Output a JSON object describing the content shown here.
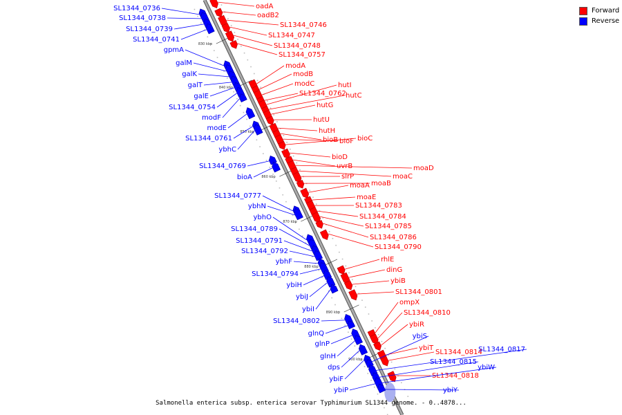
{
  "legend": {
    "items": [
      {
        "label": "Forward",
        "color": "#ff0000"
      },
      {
        "label": "Reverse",
        "color": "#0000ff"
      }
    ]
  },
  "caption": "Salmonella enterica subsp. enterica serovar Typhimurium SL1344 genome. - 0..4878...",
  "colors": {
    "forward": "#ff0000",
    "forward_dark": "#b00000",
    "reverse": "#0000ff",
    "reverse_dark": "#0000a0",
    "backbone": "#aaaaaa",
    "backbone_edge": "#555555"
  },
  "ticks": [
    "830 kbp",
    "840 kbp",
    "850 kbp",
    "860 kbp",
    "870 kbp",
    "880 kbp",
    "890 kbp",
    "900 kbp"
  ],
  "forward_genes": [
    "oadA",
    "oadB2",
    "SL1344_0746",
    "SL1344_0747",
    "SL1344_0748",
    "SL1344_0757",
    "modA",
    "modB",
    "modC",
    "SL1344_0762",
    "hutI",
    "hutC",
    "hutG",
    "hutU",
    "hutH",
    "bioB",
    "bioF",
    "bioC",
    "bioD",
    "uvrB",
    "moaD",
    "moaC",
    "slrP",
    "moaB",
    "moaA",
    "moaE",
    "SL1344_0783",
    "SL1344_0784",
    "SL1344_0785",
    "SL1344_0786",
    "SL1344_0790",
    "rhlE",
    "dinG",
    "ybiB",
    "SL1344_0801",
    "ompX",
    "SL1344_0810",
    "ybiR",
    "ybiT",
    "SL1344_0814",
    "SL1344_0818"
  ],
  "reverse_genes": [
    "SL1344_0736",
    "SL1344_0738",
    "SL1344_0739",
    "SL1344_0741",
    "gpmA",
    "galM",
    "galK",
    "galT",
    "galE",
    "SL1344_0754",
    "modF",
    "modE",
    "SL1344_0761",
    "ybhC",
    "SL1344_0769",
    "bioA",
    "SL1344_0777",
    "ybhN",
    "ybhO",
    "SL1344_0789",
    "SL1344_0791",
    "SL1344_0792",
    "ybhF",
    "SL1344_0794",
    "ybiH",
    "ybiJ",
    "ybiI",
    "SL1344_0802",
    "glnQ",
    "glnP",
    "glnH",
    "dps",
    "ybiF",
    "ybiP",
    "ybiS",
    "SL1344_0817",
    "SL1344_0815",
    "ybiW",
    "ybiY"
  ]
}
